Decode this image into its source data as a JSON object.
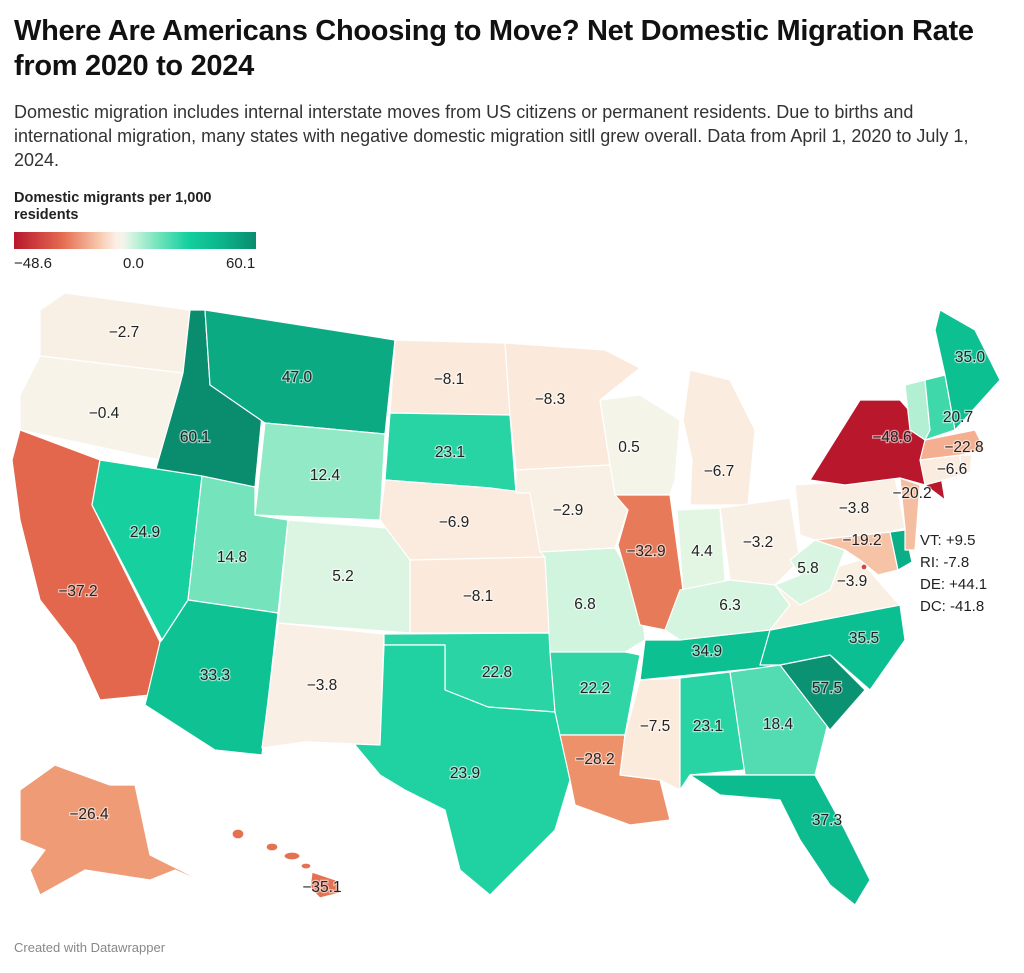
{
  "title": "Where Are Americans Choosing to Move? Net Domestic Migration Rate from 2020 to 2024",
  "subtitle": "Domestic migration includes internal interstate moves from US citizens or permanent residents. Due to births and international migration, many states with negative domestic migration sitll grew overall. Data from April 1, 2020 to July 1, 2024.",
  "legend": {
    "title": "Domestic migrants per 1,000 residents",
    "min_label": "−48.6",
    "mid_label": "0.0",
    "max_label": "60.1",
    "min": -48.6,
    "max": 60.1
  },
  "states": {
    "wa": {
      "name": "Washington",
      "value": -2.7,
      "label": "−2.7"
    },
    "or": {
      "name": "Oregon",
      "value": -0.4,
      "label": "−0.4"
    },
    "ca": {
      "name": "California",
      "value": -37.2,
      "label": "−37.2"
    },
    "id": {
      "name": "Idaho",
      "value": 60.1,
      "label": "60.1"
    },
    "nv": {
      "name": "Nevada",
      "value": 24.9,
      "label": "24.9"
    },
    "mt": {
      "name": "Montana",
      "value": 47.0,
      "label": "47.0"
    },
    "wy": {
      "name": "Wyoming",
      "value": 12.4,
      "label": "12.4"
    },
    "ut": {
      "name": "Utah",
      "value": 14.8,
      "label": "14.8"
    },
    "az": {
      "name": "Arizona",
      "value": 33.3,
      "label": "33.3"
    },
    "co": {
      "name": "Colorado",
      "value": 5.2,
      "label": "5.2"
    },
    "nm": {
      "name": "New Mexico",
      "value": -3.8,
      "label": "−3.8"
    },
    "nd": {
      "name": "North Dakota",
      "value": -8.1,
      "label": "−8.1"
    },
    "sd": {
      "name": "South Dakota",
      "value": 23.1,
      "label": "23.1"
    },
    "ne": {
      "name": "Nebraska",
      "value": -6.9,
      "label": "−6.9"
    },
    "ks": {
      "name": "Kansas",
      "value": -8.1,
      "label": "−8.1"
    },
    "ok": {
      "name": "Oklahoma",
      "value": 22.8,
      "label": "22.8"
    },
    "tx": {
      "name": "Texas",
      "value": 23.9,
      "label": "23.9"
    },
    "mn": {
      "name": "Minnesota",
      "value": -8.3,
      "label": "−8.3"
    },
    "ia": {
      "name": "Iowa",
      "value": -2.9,
      "label": "−2.9"
    },
    "mo": {
      "name": "Missouri",
      "value": 6.8,
      "label": "6.8"
    },
    "ar": {
      "name": "Arkansas",
      "value": 22.2,
      "label": "22.2"
    },
    "la": {
      "name": "Louisiana",
      "value": -28.2,
      "label": "−28.2"
    },
    "wi": {
      "name": "Wisconsin",
      "value": 0.5,
      "label": "0.5"
    },
    "il": {
      "name": "Illinois",
      "value": -32.9,
      "label": "−32.9"
    },
    "mi": {
      "name": "Michigan",
      "value": -6.7,
      "label": "−6.7"
    },
    "in": {
      "name": "Indiana",
      "value": 4.4,
      "label": "4.4"
    },
    "oh": {
      "name": "Ohio",
      "value": -3.2,
      "label": "−3.2"
    },
    "ky": {
      "name": "Kentucky",
      "value": 6.3,
      "label": "6.3"
    },
    "tn": {
      "name": "Tennessee",
      "value": 34.9,
      "label": "34.9"
    },
    "ms": {
      "name": "Mississippi",
      "value": -7.5,
      "label": "−7.5"
    },
    "al": {
      "name": "Alabama",
      "value": 23.1,
      "label": "23.1"
    },
    "ga": {
      "name": "Georgia",
      "value": 18.4,
      "label": "18.4"
    },
    "fl": {
      "name": "Florida",
      "value": 37.3,
      "label": "37.3"
    },
    "sc": {
      "name": "South Carolina",
      "value": 57.5,
      "label": "57.5"
    },
    "nc": {
      "name": "North Carolina",
      "value": 35.5,
      "label": "35.5"
    },
    "va": {
      "name": "Virginia",
      "value": -3.9,
      "label": "−3.9"
    },
    "wv": {
      "name": "West Virginia",
      "value": 5.8,
      "label": "5.8"
    },
    "md": {
      "name": "Maryland",
      "value": -19.2,
      "label": "−19.2"
    },
    "de": {
      "name": "Delaware",
      "value": 44.1,
      "label": ""
    },
    "pa": {
      "name": "Pennsylvania",
      "value": -3.8,
      "label": "−3.8"
    },
    "nj": {
      "name": "New Jersey",
      "value": -20.2,
      "label": "−20.2"
    },
    "ny": {
      "name": "New York",
      "value": -48.6,
      "label": "−48.6"
    },
    "ct": {
      "name": "Connecticut",
      "value": -6.6,
      "label": "−6.6"
    },
    "ri": {
      "name": "Rhode Island",
      "value": -7.8,
      "label": ""
    },
    "ma": {
      "name": "Massachusetts",
      "value": -22.8,
      "label": "−22.8"
    },
    "vt": {
      "name": "Vermont",
      "value": 9.5,
      "label": ""
    },
    "nh": {
      "name": "New Hampshire",
      "value": 20.7,
      "label": "20.7"
    },
    "me": {
      "name": "Maine",
      "value": 35.0,
      "label": "35.0"
    },
    "ak": {
      "name": "Alaska",
      "value": -26.4,
      "label": "−26.4"
    },
    "hi": {
      "name": "Hawaii",
      "value": -35.1,
      "label": "−35.1"
    },
    "dc": {
      "name": "District of Columbia",
      "value": -41.8,
      "label": ""
    }
  },
  "small_states": [
    "VT: +9.5",
    "RI: -7.8",
    "DE: +44.1",
    "DC: -41.8"
  ],
  "credit": "Created with Datawrapper"
}
